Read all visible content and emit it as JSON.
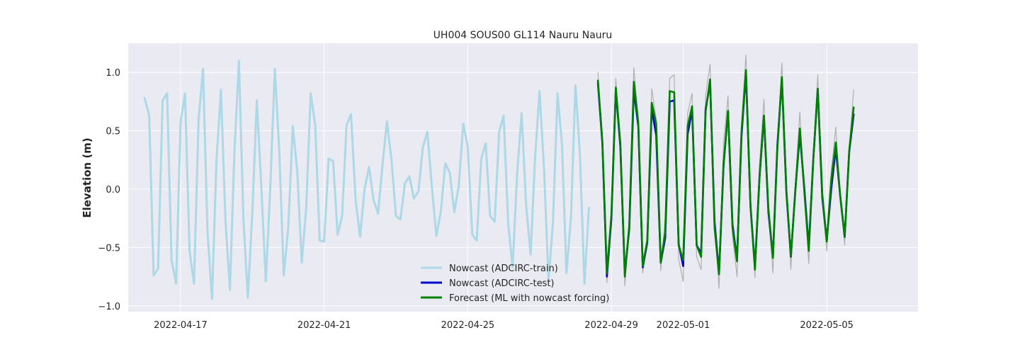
{
  "chart_data": {
    "type": "line",
    "title": "UH004 SOUS00 GL114 Nauru Nauru",
    "xlabel": "",
    "ylabel": "Elevation (m)",
    "x_unit": "days",
    "xlim": [
      "2022-04-15T13:00",
      "2022-05-07T13:00"
    ],
    "ylim": [
      -1.05,
      1.25
    ],
    "grid": true,
    "legend_position": "bottom-center",
    "x_ticks": [
      "2022-04-17",
      "2022-04-21",
      "2022-04-25",
      "2022-04-29",
      "2022-05-01",
      "2022-05-05"
    ],
    "y_ticks": [
      "−1.0",
      "−0.5",
      "0.0",
      "0.5",
      "1.0"
    ],
    "y_tick_values": [
      -1.0,
      -0.5,
      0.0,
      0.5,
      1.0
    ],
    "background": "#eaeaf2",
    "series": [
      {
        "name": "Nowcast (ADCIRC-train)",
        "color": "#add8e6",
        "x_start": "2022-04-16T00:00",
        "step_hours": 3,
        "values": [
          0.78,
          0.63,
          -0.74,
          -0.68,
          0.76,
          0.82,
          -0.61,
          -0.81,
          0.57,
          0.82,
          -0.53,
          -0.81,
          0.59,
          1.03,
          -0.36,
          -0.94,
          0.24,
          0.85,
          -0.27,
          -0.86,
          0.31,
          1.1,
          -0.25,
          -0.93,
          -0.19,
          0.76,
          0.02,
          -0.79,
          0.02,
          1.03,
          0.32,
          -0.74,
          -0.33,
          0.54,
          0.16,
          -0.63,
          -0.16,
          0.82,
          0.55,
          -0.44,
          -0.45,
          0.26,
          0.24,
          -0.39,
          -0.23,
          0.55,
          0.64,
          -0.09,
          -0.41,
          0.0,
          0.19,
          -0.09,
          -0.21,
          0.21,
          0.58,
          0.25,
          -0.23,
          -0.26,
          0.05,
          0.11,
          -0.08,
          -0.02,
          0.36,
          0.49,
          0.02,
          -0.4,
          -0.19,
          0.22,
          0.14,
          -0.2,
          0.03,
          0.56,
          0.36,
          -0.39,
          -0.44,
          0.26,
          0.39,
          -0.23,
          -0.28,
          0.49,
          0.63,
          -0.29,
          -0.67,
          0.14,
          0.65,
          -0.13,
          -0.56,
          0.27,
          0.84,
          0.17,
          -0.79,
          -0.28,
          0.82,
          0.38,
          -0.72,
          -0.24,
          0.89,
          0.3,
          -0.81,
          -0.16
        ]
      },
      {
        "name": "Nowcast (ADCIRC-test)",
        "color": "#0000cd",
        "x_start": "2022-04-28T15:00",
        "step_hours": 3,
        "values": [
          0.91,
          0.39,
          -0.75,
          -0.26,
          0.85,
          0.36,
          -0.72,
          -0.34,
          0.85,
          0.54,
          -0.67,
          -0.46,
          0.69,
          0.46,
          -0.63,
          -0.42,
          0.75,
          0.76,
          -0.47,
          -0.66,
          0.47,
          0.68,
          -0.48,
          -0.55,
          0.68,
          0.91,
          -0.28,
          -0.72,
          0.2,
          0.67,
          -0.3,
          -0.6,
          0.45,
          1.0,
          -0.14,
          -0.67,
          0.1,
          0.62,
          -0.2,
          -0.58,
          0.38,
          0.94,
          -0.03,
          -0.58,
          -0.01,
          0.47,
          0.01,
          -0.5,
          0.26,
          0.86,
          -0.07,
          -0.44,
          0.0,
          0.35,
          -0.06,
          -0.41,
          0.32,
          0.64
        ]
      },
      {
        "name": "Forecast (ML with nowcast forcing)",
        "color": "#008000",
        "x_start": "2022-04-28T15:00",
        "step_hours": 3,
        "values": [
          0.93,
          0.41,
          -0.72,
          -0.23,
          0.87,
          0.39,
          -0.75,
          -0.31,
          0.92,
          0.57,
          -0.66,
          -0.44,
          0.74,
          0.56,
          -0.63,
          -0.37,
          0.84,
          0.83,
          -0.48,
          -0.61,
          0.54,
          0.71,
          -0.48,
          -0.58,
          0.66,
          0.94,
          -0.33,
          -0.73,
          0.22,
          0.67,
          -0.33,
          -0.62,
          0.49,
          1.02,
          -0.15,
          -0.69,
          0.09,
          0.63,
          -0.17,
          -0.59,
          0.35,
          0.96,
          -0.01,
          -0.58,
          -0.02,
          0.52,
          -0.02,
          -0.53,
          0.25,
          0.86,
          -0.04,
          -0.45,
          0.08,
          0.4,
          -0.06,
          -0.41,
          0.33,
          0.7
        ]
      },
      {
        "name": "",
        "color": "#b0b0b0",
        "x_start": "2022-04-28T15:00",
        "step_hours": 3,
        "values": [
          1.0,
          0.45,
          -0.8,
          -0.15,
          0.95,
          0.35,
          -0.83,
          -0.3,
          1.04,
          0.6,
          -0.72,
          -0.45,
          0.86,
          0.6,
          -0.7,
          -0.25,
          0.95,
          0.98,
          -0.6,
          -0.79,
          0.65,
          0.82,
          -0.58,
          -0.69,
          0.8,
          1.07,
          -0.3,
          -0.85,
          0.4,
          0.8,
          -0.4,
          -0.75,
          0.55,
          1.15,
          -0.1,
          -0.76,
          0.2,
          0.77,
          -0.2,
          -0.72,
          0.4,
          1.08,
          0.05,
          -0.69,
          0.05,
          0.66,
          -0.05,
          -0.64,
          0.3,
          0.98,
          -0.1,
          -0.53,
          0.15,
          0.53,
          -0.05,
          -0.48,
          0.35,
          0.85
        ]
      }
    ]
  }
}
